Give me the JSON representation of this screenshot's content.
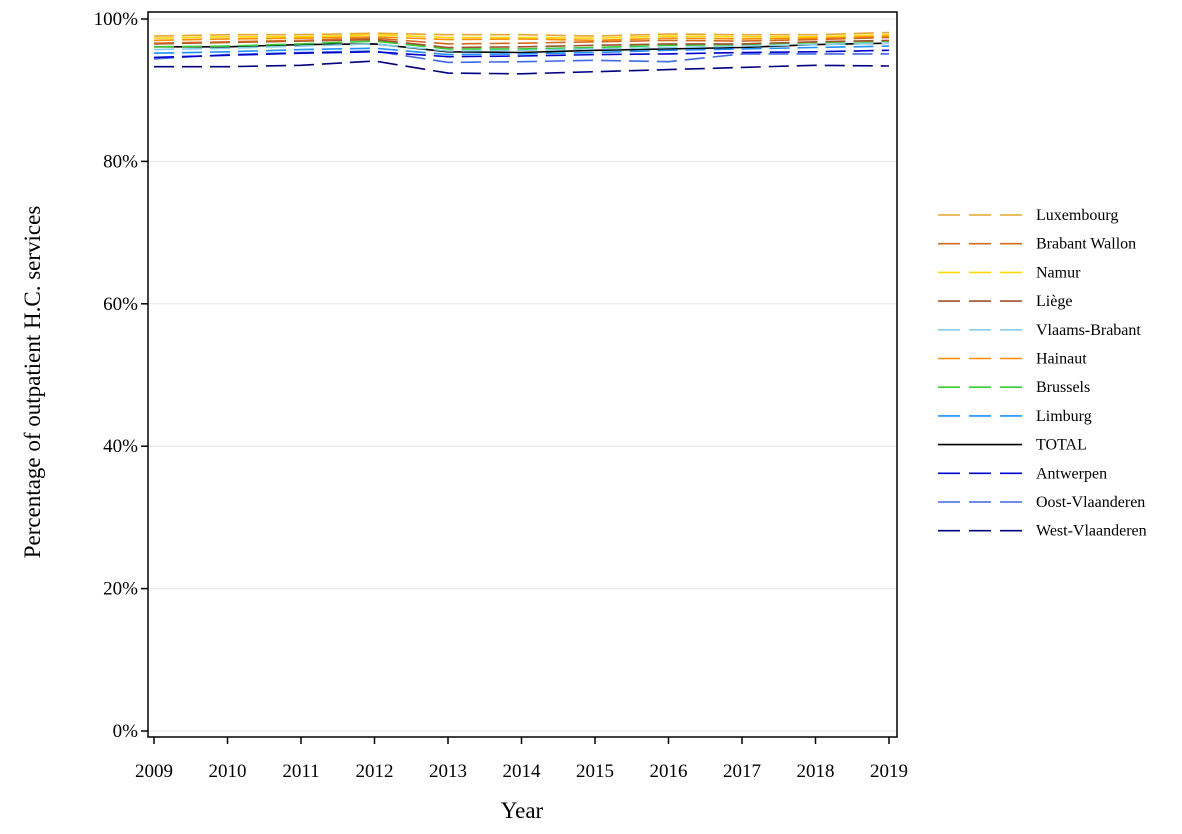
{
  "chart_data": {
    "type": "line",
    "title": "",
    "xlabel": "Year",
    "ylabel": "Percentage of outpatient H.C. services",
    "x": [
      2009,
      2010,
      2011,
      2012,
      2013,
      2014,
      2015,
      2016,
      2017,
      2018,
      2019
    ],
    "xlim": [
      2009,
      2019
    ],
    "ylim": [
      0,
      100
    ],
    "y_ticks": [
      0,
      20,
      40,
      60,
      80,
      100
    ],
    "y_tick_format": "percent",
    "grid": "horizontal",
    "legend_position": "right",
    "series": [
      {
        "name": "Luxembourg",
        "color": "#E6A532",
        "dash": "dashed",
        "values": [
          97.6,
          97.8,
          97.8,
          98.0,
          97.8,
          97.8,
          97.6,
          97.9,
          97.8,
          97.8,
          98.1
        ]
      },
      {
        "name": "Brabant Wallon",
        "color": "#D2691E",
        "dash": "dashed",
        "values": [
          96.6,
          96.8,
          97.0,
          97.3,
          96.5,
          96.6,
          96.8,
          97.0,
          96.9,
          97.1,
          97.4
        ]
      },
      {
        "name": "Namur",
        "color": "#FFD700",
        "dash": "dashed",
        "values": [
          97.3,
          97.5,
          97.5,
          97.8,
          97.4,
          97.4,
          97.3,
          97.6,
          97.5,
          97.5,
          97.8
        ]
      },
      {
        "name": "Liège",
        "color": "#A0522D",
        "dash": "dashed",
        "values": [
          96.5,
          96.7,
          96.9,
          97.1,
          96.0,
          96.1,
          96.3,
          96.5,
          96.5,
          96.8,
          97.0
        ]
      },
      {
        "name": "Vlaams-Brabant",
        "color": "#87CEEB",
        "dash": "dashed",
        "values": [
          95.7,
          95.9,
          96.2,
          96.5,
          95.5,
          95.6,
          95.8,
          96.0,
          96.2,
          96.4,
          96.6
        ]
      },
      {
        "name": "Hainaut",
        "color": "#FF8C00",
        "dash": "dashed",
        "values": [
          97.0,
          97.2,
          97.3,
          97.5,
          97.1,
          97.2,
          97.0,
          97.3,
          97.2,
          97.3,
          97.6
        ]
      },
      {
        "name": "Brussels",
        "color": "#32CD32",
        "dash": "dashed",
        "values": [
          96.1,
          96.2,
          96.5,
          96.9,
          95.8,
          95.8,
          96.0,
          96.3,
          96.4,
          96.7,
          96.9
        ]
      },
      {
        "name": "Limburg",
        "color": "#1E90FF",
        "dash": "dashed",
        "values": [
          95.2,
          95.4,
          95.7,
          95.9,
          95.0,
          95.1,
          95.3,
          95.6,
          95.8,
          96.0,
          96.2
        ]
      },
      {
        "name": "TOTAL",
        "color": "#000000",
        "dash": "solid",
        "values": [
          96.1,
          96.1,
          96.4,
          96.5,
          95.4,
          95.3,
          95.6,
          95.8,
          96.0,
          96.4,
          96.6
        ]
      },
      {
        "name": "Antwerpen",
        "color": "#0000CD",
        "dash": "dashed",
        "values": [
          94.6,
          94.9,
          95.2,
          95.4,
          94.7,
          94.8,
          95.0,
          95.1,
          95.3,
          95.4,
          95.6
        ]
      },
      {
        "name": "Oost-Vlaanderen",
        "color": "#4169E1",
        "dash": "dashed",
        "values": [
          94.4,
          95.0,
          95.3,
          95.5,
          93.9,
          94.0,
          94.2,
          94.0,
          95.1,
          95.1,
          95.1
        ]
      },
      {
        "name": "West-Vlaanderen",
        "color": "#000080",
        "dash": "dashed",
        "values": [
          93.3,
          93.3,
          93.5,
          94.1,
          92.4,
          92.3,
          92.6,
          92.9,
          93.2,
          93.5,
          93.4
        ]
      }
    ]
  }
}
